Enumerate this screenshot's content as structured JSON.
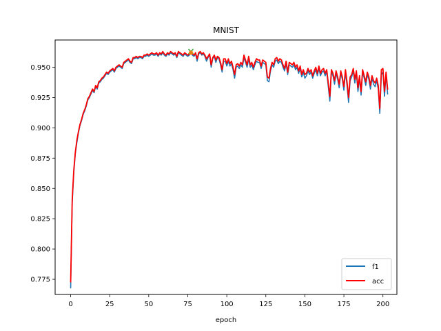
{
  "chart_data": {
    "type": "line",
    "title": "MNIST",
    "xlabel": "epoch",
    "ylabel": "",
    "xlim": [
      -9.95,
      208.95
    ],
    "ylim": [
      0.7625,
      0.9725
    ],
    "xticks": [
      0,
      25,
      50,
      75,
      100,
      125,
      150,
      175,
      200
    ],
    "yticks": [
      0.775,
      0.8,
      0.825,
      0.85,
      0.875,
      0.9,
      0.925,
      0.95
    ],
    "ytick_labels": [
      "0.775",
      "0.800",
      "0.825",
      "0.850",
      "0.875",
      "0.900",
      "0.925",
      "0.950"
    ],
    "grid": false,
    "legend_position": "lower-right",
    "series": [
      {
        "name": "f1",
        "color": "#1f77b4",
        "values": [
          0.768,
          0.838,
          0.863,
          0.879,
          0.888,
          0.896,
          0.902,
          0.906,
          0.911,
          0.914,
          0.918,
          0.923,
          0.925,
          0.928,
          0.931,
          0.929,
          0.934,
          0.932,
          0.937,
          0.938,
          0.94,
          0.941,
          0.943,
          0.945,
          0.944,
          0.946,
          0.947,
          0.948,
          0.946,
          0.949,
          0.95,
          0.951,
          0.95,
          0.949,
          0.953,
          0.954,
          0.955,
          0.956,
          0.954,
          0.953,
          0.957,
          0.957,
          0.958,
          0.957,
          0.958,
          0.958,
          0.957,
          0.959,
          0.959,
          0.96,
          0.959,
          0.96,
          0.961,
          0.96,
          0.96,
          0.961,
          0.959,
          0.961,
          0.96,
          0.962,
          0.96,
          0.959,
          0.961,
          0.96,
          0.962,
          0.961,
          0.96,
          0.961,
          0.958,
          0.962,
          0.961,
          0.96,
          0.959,
          0.961,
          0.96,
          0.959,
          0.96,
          0.962,
          0.96,
          0.959,
          0.961,
          0.955,
          0.961,
          0.962,
          0.96,
          0.961,
          0.959,
          0.955,
          0.958,
          0.96,
          0.95,
          0.957,
          0.959,
          0.954,
          0.958,
          0.957,
          0.952,
          0.946,
          0.955,
          0.955,
          0.951,
          0.955,
          0.951,
          0.953,
          0.948,
          0.941,
          0.95,
          0.951,
          0.949,
          0.952,
          0.95,
          0.958,
          0.954,
          0.95,
          0.957,
          0.95,
          0.952,
          0.948,
          0.952,
          0.955,
          0.954,
          0.954,
          0.949,
          0.954,
          0.953,
          0.952,
          0.939,
          0.938,
          0.947,
          0.952,
          0.95,
          0.955,
          0.956,
          0.953,
          0.955,
          0.954,
          0.95,
          0.947,
          0.953,
          0.944,
          0.952,
          0.951,
          0.95,
          0.952,
          0.948,
          0.95,
          0.945,
          0.949,
          0.942,
          0.946,
          0.941,
          0.943,
          0.947,
          0.944,
          0.946,
          0.941,
          0.945,
          0.948,
          0.943,
          0.949,
          0.943,
          0.946,
          0.947,
          0.943,
          0.946,
          0.934,
          0.922,
          0.946,
          0.943,
          0.936,
          0.945,
          0.94,
          0.933,
          0.945,
          0.94,
          0.931,
          0.946,
          0.935,
          0.921,
          0.939,
          0.942,
          0.947,
          0.937,
          0.945,
          0.93,
          0.941,
          0.927,
          0.946,
          0.941,
          0.935,
          0.944,
          0.94,
          0.932,
          0.941,
          0.936,
          0.934,
          0.939,
          0.932,
          0.912,
          0.944,
          0.946,
          0.926,
          0.944,
          0.928
        ]
      },
      {
        "name": "acc",
        "color": "#ff0000",
        "values": [
          0.773,
          0.841,
          0.865,
          0.88,
          0.89,
          0.897,
          0.903,
          0.907,
          0.912,
          0.915,
          0.919,
          0.924,
          0.926,
          0.929,
          0.932,
          0.93,
          0.935,
          0.933,
          0.938,
          0.939,
          0.941,
          0.942,
          0.944,
          0.946,
          0.945,
          0.947,
          0.948,
          0.949,
          0.947,
          0.95,
          0.951,
          0.952,
          0.951,
          0.95,
          0.954,
          0.955,
          0.956,
          0.957,
          0.955,
          0.954,
          0.958,
          0.958,
          0.959,
          0.958,
          0.959,
          0.959,
          0.958,
          0.96,
          0.96,
          0.961,
          0.96,
          0.961,
          0.962,
          0.961,
          0.961,
          0.962,
          0.96,
          0.962,
          0.961,
          0.963,
          0.961,
          0.96,
          0.962,
          0.961,
          0.963,
          0.962,
          0.961,
          0.962,
          0.959,
          0.963,
          0.962,
          0.961,
          0.96,
          0.962,
          0.961,
          0.96,
          0.961,
          0.963,
          0.961,
          0.96,
          0.962,
          0.957,
          0.962,
          0.963,
          0.961,
          0.962,
          0.96,
          0.957,
          0.959,
          0.961,
          0.952,
          0.958,
          0.96,
          0.956,
          0.959,
          0.958,
          0.954,
          0.948,
          0.957,
          0.957,
          0.953,
          0.957,
          0.953,
          0.955,
          0.95,
          0.944,
          0.952,
          0.953,
          0.951,
          0.954,
          0.952,
          0.96,
          0.956,
          0.952,
          0.959,
          0.952,
          0.954,
          0.95,
          0.954,
          0.957,
          0.956,
          0.956,
          0.951,
          0.956,
          0.955,
          0.954,
          0.942,
          0.941,
          0.949,
          0.954,
          0.952,
          0.957,
          0.958,
          0.955,
          0.957,
          0.956,
          0.952,
          0.949,
          0.955,
          0.946,
          0.954,
          0.953,
          0.952,
          0.954,
          0.95,
          0.952,
          0.947,
          0.951,
          0.944,
          0.948,
          0.944,
          0.945,
          0.949,
          0.946,
          0.948,
          0.943,
          0.947,
          0.95,
          0.945,
          0.951,
          0.945,
          0.948,
          0.949,
          0.945,
          0.948,
          0.937,
          0.926,
          0.948,
          0.945,
          0.939,
          0.947,
          0.942,
          0.936,
          0.947,
          0.942,
          0.934,
          0.948,
          0.938,
          0.925,
          0.942,
          0.944,
          0.949,
          0.94,
          0.947,
          0.933,
          0.943,
          0.93,
          0.948,
          0.943,
          0.938,
          0.946,
          0.942,
          0.935,
          0.943,
          0.939,
          0.937,
          0.941,
          0.935,
          0.916,
          0.948,
          0.949,
          0.93,
          0.946,
          0.932
        ]
      }
    ],
    "markers": [
      {
        "type": "x",
        "x": 77,
        "y": 0.963,
        "color": "#2ca02c"
      },
      {
        "type": "circle",
        "x": 77,
        "y": 0.962,
        "color": "#ff7f0e"
      }
    ]
  }
}
